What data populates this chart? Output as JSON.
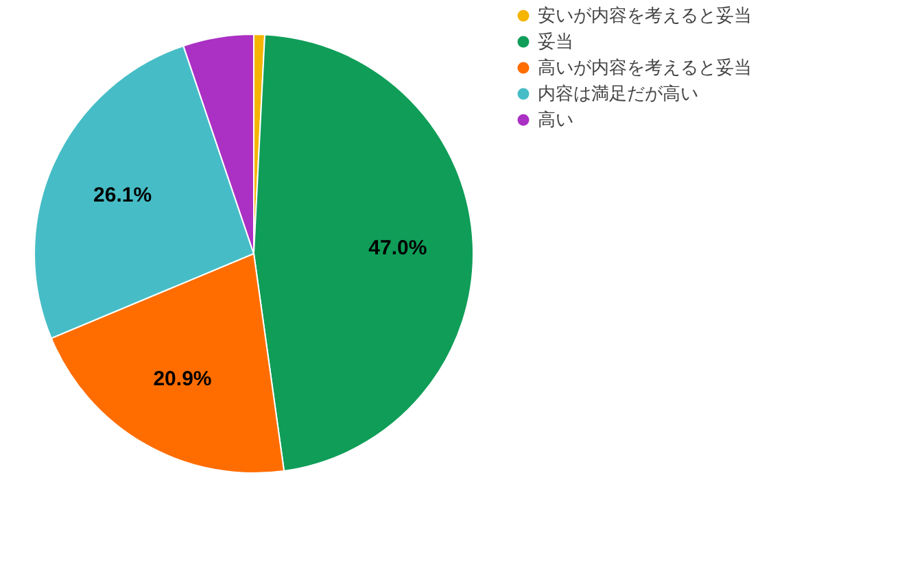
{
  "chart_data": {
    "type": "pie",
    "categories": [
      "安いが内容を考えると妥当",
      "妥当",
      "高いが内容を考えると妥当",
      "内容は満足だが高い",
      "高い"
    ],
    "values": [
      0.8,
      47.0,
      20.9,
      26.1,
      5.2
    ],
    "colors": [
      "#f4b400",
      "#0f9d58",
      "#ff6d00",
      "#46bdc6",
      "#ab30c4"
    ],
    "value_labels": [
      null,
      "47.0%",
      "20.9%",
      "26.1%",
      null
    ],
    "legend": "top right"
  }
}
